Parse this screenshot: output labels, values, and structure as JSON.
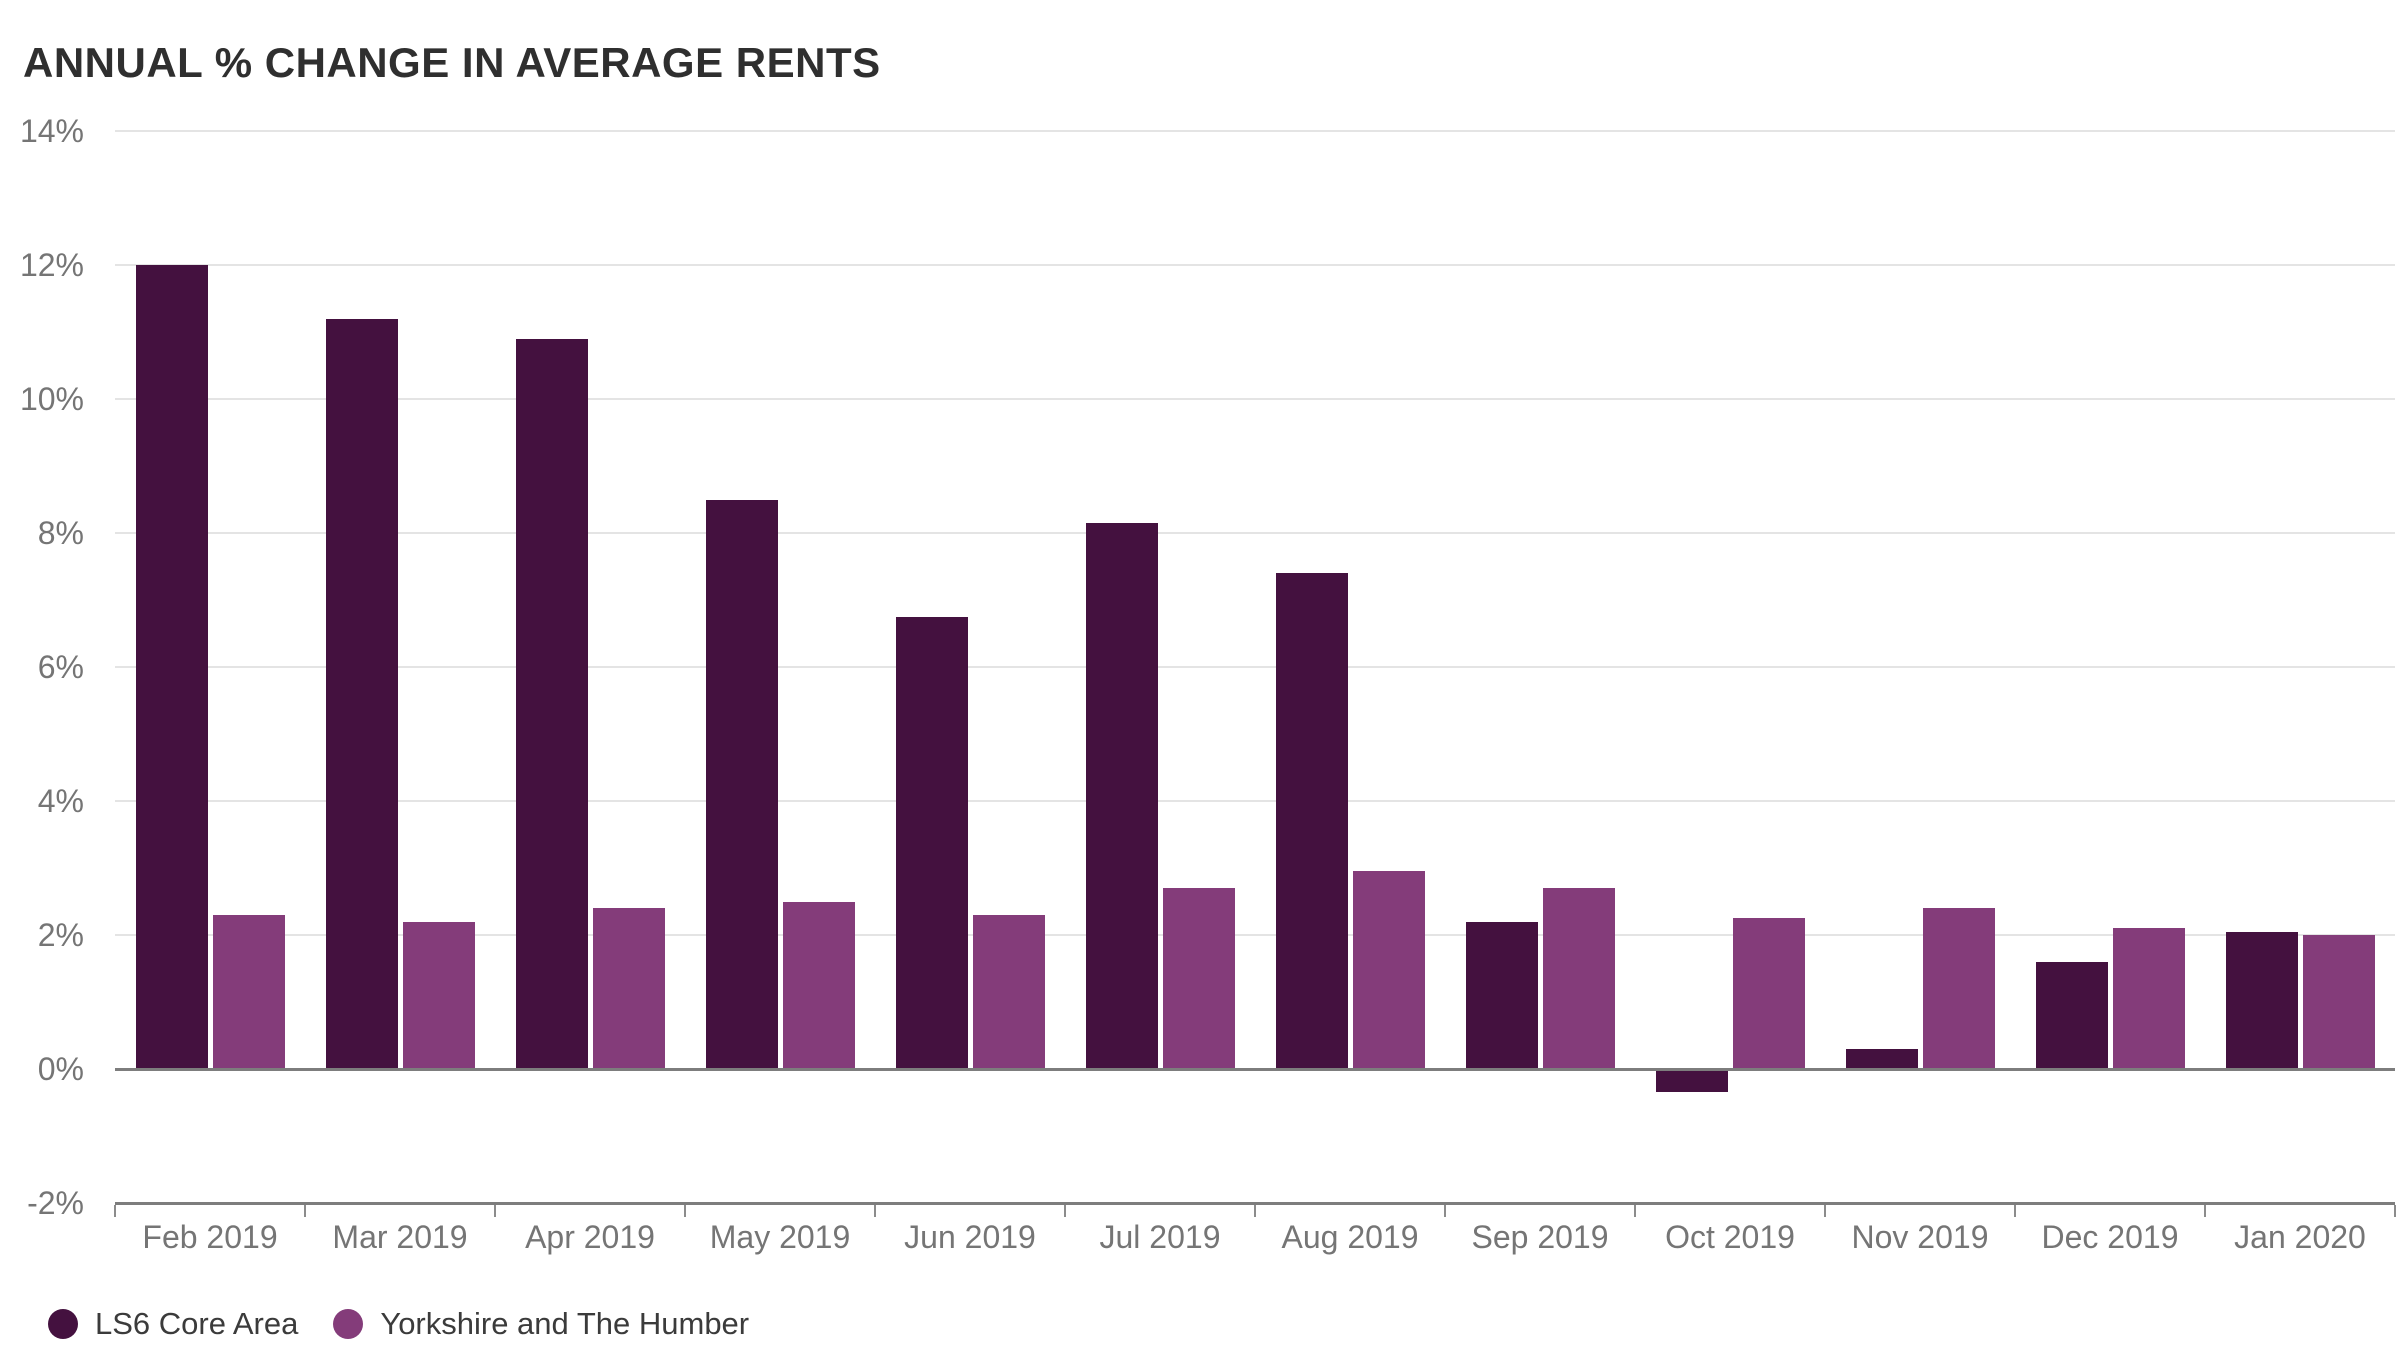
{
  "title": "ANNUAL % CHANGE IN AVERAGE RENTS",
  "chart_data": {
    "type": "bar",
    "title": "ANNUAL % CHANGE IN AVERAGE RENTS",
    "xlabel": "",
    "ylabel": "",
    "ylim": [
      -2,
      14
    ],
    "grid": true,
    "legend_position": "bottom-left",
    "categories": [
      "Feb 2019",
      "Mar 2019",
      "Apr 2019",
      "May 2019",
      "Jun 2019",
      "Jul 2019",
      "Aug 2019",
      "Sep 2019",
      "Oct 2019",
      "Nov 2019",
      "Dec 2019",
      "Jan 2020"
    ],
    "series": [
      {
        "name": "LS6 Core Area",
        "color": "#44113f",
        "values": [
          12.0,
          11.2,
          10.9,
          8.5,
          6.75,
          8.15,
          7.4,
          2.2,
          -0.35,
          0.3,
          1.6,
          2.05
        ]
      },
      {
        "name": "Yorkshire and The Humber",
        "color": "#843c7a",
        "values": [
          2.3,
          2.2,
          2.4,
          2.5,
          2.3,
          2.7,
          2.95,
          2.7,
          2.25,
          2.4,
          2.1,
          2.0
        ]
      }
    ],
    "y_axis": {
      "ticks": [
        {
          "value": 14,
          "label": "14%"
        },
        {
          "value": 12,
          "label": "12%"
        },
        {
          "value": 10,
          "label": "10%"
        },
        {
          "value": 8,
          "label": "8%"
        },
        {
          "value": 6,
          "label": "6%"
        },
        {
          "value": 4,
          "label": "4%"
        },
        {
          "value": 2,
          "label": "2%"
        },
        {
          "value": 0,
          "label": "0%"
        },
        {
          "value": -2,
          "label": "-2%"
        }
      ]
    },
    "style": {
      "gridline_color": "#e4e4e4",
      "axis_line_color": "#7d7d7d",
      "axis_tick_color": "#8c8c8c",
      "axis_label_color": "#757575",
      "title_color": "#2f2f2f",
      "legend_text_color": "#3b3b3b",
      "background_color": "#ffffff"
    }
  }
}
